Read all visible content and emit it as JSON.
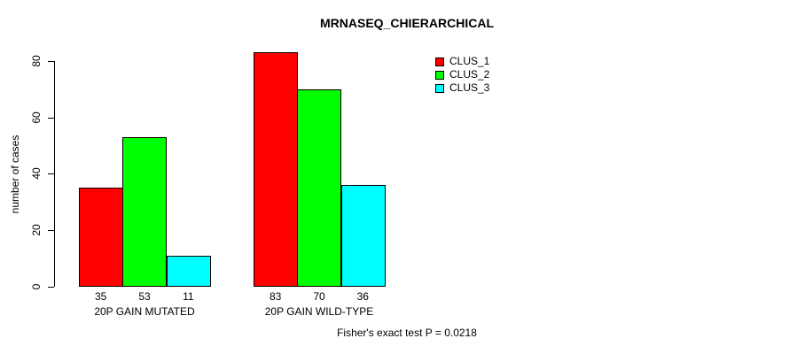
{
  "chart_data": {
    "type": "bar",
    "title": "MRNASEQ_CHIERARCHICAL",
    "ylabel": "number of cases",
    "xlabel": "",
    "categories": [
      "20P GAIN MUTATED",
      "20P GAIN WILD-TYPE"
    ],
    "series": [
      {
        "name": "CLUS_1",
        "color": "#ff0000",
        "values": [
          35,
          83
        ]
      },
      {
        "name": "CLUS_2",
        "color": "#00ff00",
        "values": [
          53,
          70
        ]
      },
      {
        "name": "CLUS_3",
        "color": "#00ffff",
        "values": [
          11,
          36
        ]
      }
    ],
    "bar_value_labels": [
      [
        35,
        53,
        11
      ],
      [
        83,
        70,
        36
      ]
    ],
    "yticks": [
      0,
      20,
      40,
      60,
      80
    ],
    "ylim": [
      0,
      83
    ],
    "grid": false,
    "legend_position": "top-right",
    "legend_entries": [
      "CLUS_1",
      "CLUS_2",
      "CLUS_3"
    ],
    "annotation": "Fisher's exact test P = 0.0218",
    "bar_border_color": "#000000",
    "axis_color": "#000000",
    "background": "#ffffff"
  }
}
